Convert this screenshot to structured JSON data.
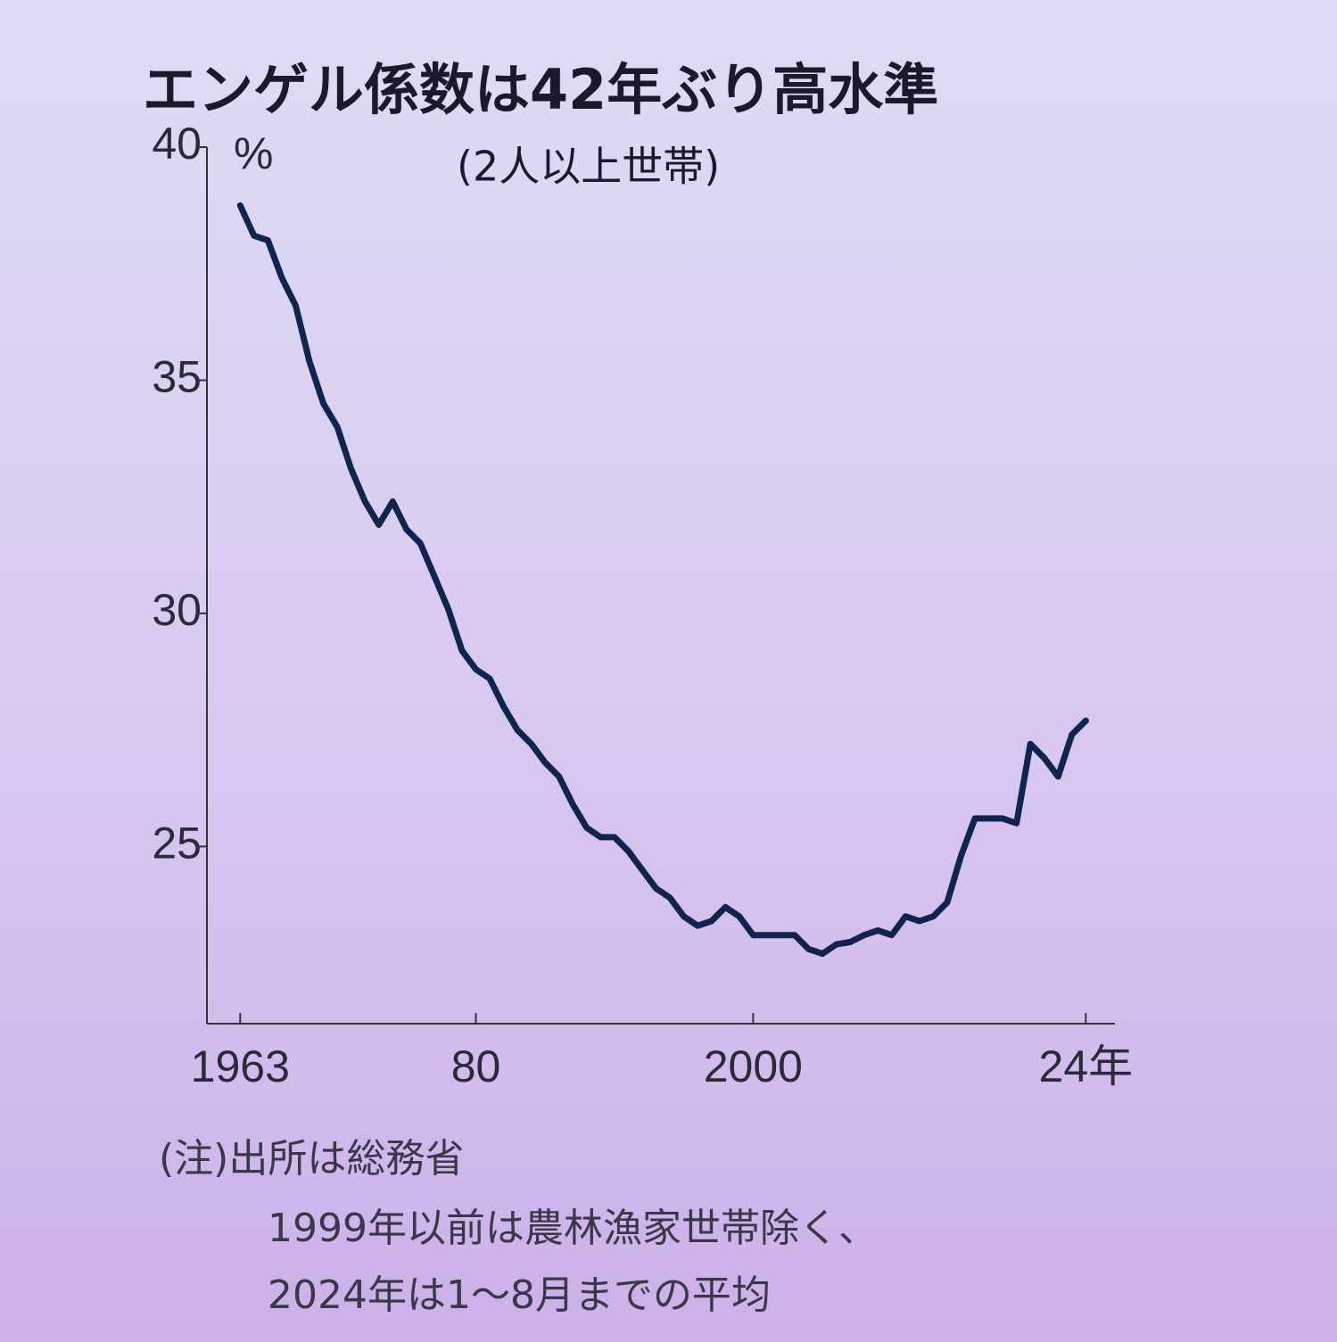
{
  "chart_data": {
    "type": "line",
    "title": "エンゲル係数は42年ぶり高水準",
    "subtitle": "(2人以上世帯)",
    "y_label": "%",
    "notes": [
      "(注)出所は総務省",
      "1999年以前は農林漁家世帯除く、",
      "2024年は1～8月までの平均"
    ],
    "x": [
      1963,
      1964,
      1965,
      1966,
      1967,
      1968,
      1969,
      1970,
      1971,
      1972,
      1973,
      1974,
      1975,
      1976,
      1977,
      1978,
      1979,
      1980,
      1981,
      1982,
      1983,
      1984,
      1985,
      1986,
      1987,
      1988,
      1989,
      1990,
      1991,
      1992,
      1993,
      1994,
      1995,
      1996,
      1997,
      1998,
      1999,
      2000,
      2001,
      2002,
      2003,
      2004,
      2005,
      2006,
      2007,
      2008,
      2009,
      2010,
      2011,
      2012,
      2013,
      2014,
      2015,
      2016,
      2017,
      2018,
      2019,
      2020,
      2021,
      2022,
      2023,
      2024
    ],
    "series": [
      {
        "name": "エンゲル係数",
        "color": "#10244f",
        "values": [
          38.75,
          38.1,
          38.0,
          37.2,
          36.6,
          35.4,
          34.5,
          34.0,
          33.1,
          32.4,
          31.9,
          32.4,
          31.8,
          31.5,
          30.8,
          30.1,
          29.2,
          28.8,
          28.6,
          28.0,
          27.5,
          27.2,
          26.8,
          26.5,
          25.9,
          25.4,
          25.2,
          25.2,
          24.9,
          24.5,
          24.1,
          23.9,
          23.5,
          23.3,
          23.4,
          23.7,
          23.5,
          23.1,
          23.1,
          23.1,
          23.1,
          22.8,
          22.7,
          22.9,
          22.95,
          23.1,
          23.2,
          23.1,
          23.5,
          23.4,
          23.5,
          23.8,
          24.8,
          25.6,
          25.6,
          25.6,
          25.5,
          27.2,
          26.9,
          26.5,
          27.4,
          27.7
        ]
      }
    ],
    "xlim": [
      1960.6,
      2026.1
    ],
    "xticks": [
      1963,
      {
        "value": 1980,
        "label": "80"
      },
      2000,
      {
        "value": 2024,
        "label": "24年"
      }
    ],
    "ylim": [
      21.2,
      40
    ],
    "yticks": [
      25,
      30,
      35,
      40
    ],
    "grid": false
  }
}
